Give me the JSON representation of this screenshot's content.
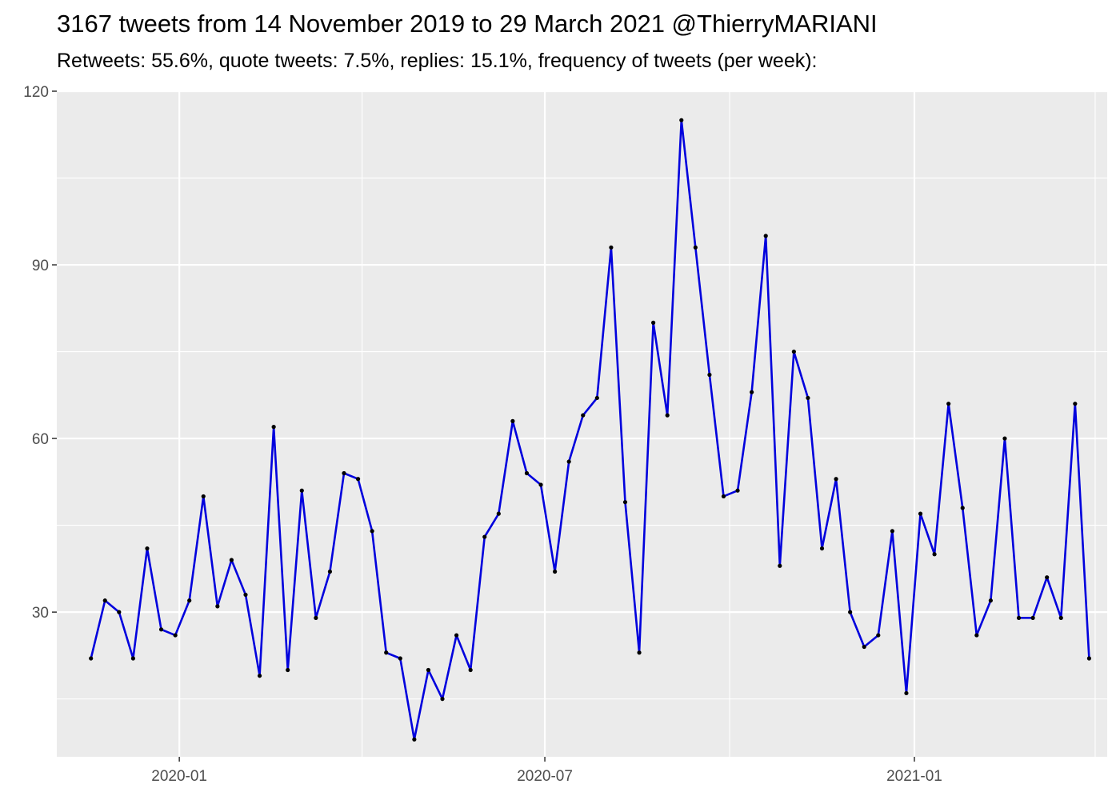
{
  "title": "3167 tweets from 14 November 2019 to 29 March 2021 @ThierryMARIANI",
  "subtitle": "Retweets: 55.6%, quote tweets: 7.5%, replies: 15.1%, frequency of tweets (per week):",
  "colors": {
    "panel_background": "#ebebeb",
    "grid": "#ffffff",
    "line": "#0000dd",
    "point": "#000000",
    "tick_text": "#4d4d4d"
  },
  "chart_data": {
    "type": "line",
    "title": "3167 tweets from 14 November 2019 to 29 March 2021 @ThierryMARIANI",
    "subtitle": "Retweets: 55.6%, quote tweets: 7.5%, replies: 15.1%, frequency of tweets (per week):",
    "xlabel": "",
    "ylabel": "",
    "x_type": "date",
    "xlim": [
      "2019-11-01",
      "2021-04-07"
    ],
    "ylim": [
      5,
      120
    ],
    "x_ticks": [
      {
        "date": "2020-01-01",
        "label": "2020-01"
      },
      {
        "date": "2020-07-01",
        "label": "2020-07"
      },
      {
        "date": "2021-01-01",
        "label": "2021-01"
      }
    ],
    "x_minor_ticks": [
      "2019-10-01",
      "2020-04-01",
      "2020-10-01",
      "2021-04-01"
    ],
    "y_ticks": [
      30,
      60,
      90,
      120
    ],
    "y_minor_ticks": [
      15,
      45,
      75,
      105
    ],
    "grid": true,
    "legend": "none",
    "points": true,
    "x": [
      "2019-11-18",
      "2019-11-25",
      "2019-12-02",
      "2019-12-09",
      "2019-12-16",
      "2019-12-23",
      "2019-12-30",
      "2020-01-06",
      "2020-01-13",
      "2020-01-20",
      "2020-01-27",
      "2020-02-03",
      "2020-02-10",
      "2020-02-17",
      "2020-02-24",
      "2020-03-02",
      "2020-03-09",
      "2020-03-16",
      "2020-03-23",
      "2020-03-30",
      "2020-04-06",
      "2020-04-13",
      "2020-04-20",
      "2020-04-27",
      "2020-05-04",
      "2020-05-11",
      "2020-05-18",
      "2020-05-25",
      "2020-06-01",
      "2020-06-08",
      "2020-06-15",
      "2020-06-22",
      "2020-06-29",
      "2020-07-06",
      "2020-07-13",
      "2020-07-20",
      "2020-07-27",
      "2020-08-03",
      "2020-08-10",
      "2020-08-17",
      "2020-08-24",
      "2020-08-31",
      "2020-09-07",
      "2020-09-14",
      "2020-09-21",
      "2020-09-28",
      "2020-10-05",
      "2020-10-12",
      "2020-10-19",
      "2020-10-26",
      "2020-11-02",
      "2020-11-09",
      "2020-11-16",
      "2020-11-23",
      "2020-11-30",
      "2020-12-07",
      "2020-12-14",
      "2020-12-21",
      "2020-12-28",
      "2021-01-04",
      "2021-01-11",
      "2021-01-18",
      "2021-01-25",
      "2021-02-01",
      "2021-02-08",
      "2021-02-15",
      "2021-02-22",
      "2021-03-01",
      "2021-03-08",
      "2021-03-15",
      "2021-03-22",
      "2021-03-29"
    ],
    "series": [
      {
        "values": [
          22,
          32,
          30,
          22,
          41,
          27,
          26,
          32,
          50,
          31,
          39,
          33,
          19,
          62,
          20,
          51,
          29,
          37,
          54,
          53,
          44,
          23,
          22,
          8,
          20,
          15,
          26,
          20,
          43,
          47,
          63,
          54,
          52,
          37,
          56,
          64,
          67,
          93,
          49,
          23,
          80,
          64,
          115,
          93,
          71,
          50,
          51,
          68,
          95,
          38,
          75,
          67,
          41,
          53,
          30,
          24,
          26,
          44,
          16,
          47,
          40,
          66,
          48,
          26,
          32,
          60,
          29,
          29,
          36,
          29,
          66,
          22
        ]
      }
    ]
  }
}
